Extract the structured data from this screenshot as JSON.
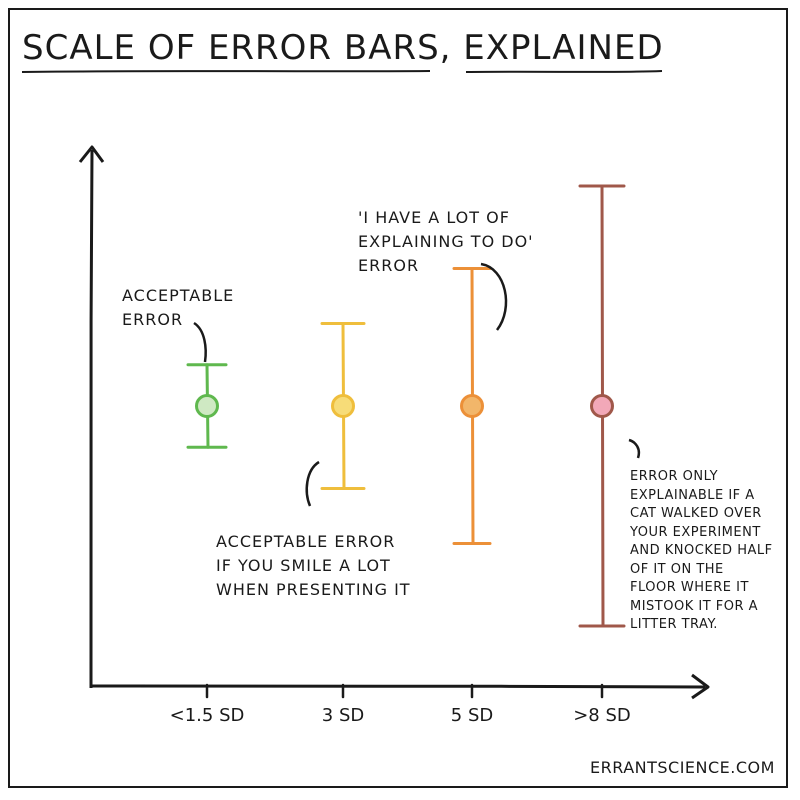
{
  "chart_data": {
    "type": "scatter",
    "title": "SCALE OF ERROR BARS, EXPLAINED",
    "xlabel": "",
    "ylabel": "",
    "categories": [
      "<1.5 SD",
      "3 SD",
      "5 SD",
      ">8 SD"
    ],
    "points": [
      {
        "category": "<1.5 SD",
        "value": 0,
        "error": 1.5,
        "color": "#5fb84e",
        "fill": "#cfe9c3"
      },
      {
        "category": "3 SD",
        "value": 0,
        "error": 3,
        "color": "#efbe3c",
        "fill": "#f7dc78"
      },
      {
        "category": "5 SD",
        "value": 0,
        "error": 5,
        "color": "#ec9038",
        "fill": "#f2b66a"
      },
      {
        "category": ">8 SD",
        "value": 0,
        "error": 8,
        "color": "#a0584a",
        "fill": "#f2a8b8"
      }
    ],
    "annotations": [
      {
        "text": "ACCEPTABLE\nERROR"
      },
      {
        "text": "ACCEPTABLE ERROR\nIF YOU SMILE A LOT\nWHEN PRESENTING IT"
      },
      {
        "text": "'I HAVE A LOT OF\nEXPLAINING TO DO'\nERROR"
      },
      {
        "text": "ERROR ONLY\nEXPLAINABLE IF A\nCAT WALKED OVER\nYOUR EXPERIMENT\nAND KNOCKED HALF\nOF IT ON THE\nFLOOR WHERE IT\nMISTOOK IT FOR A\nLITTER TRAY."
      }
    ],
    "grid": false,
    "legend": "none"
  },
  "credit": "ERRANTSCIENCE.COM",
  "colors": {
    "ink": "#1a1a1a",
    "background": "#ffffff"
  }
}
